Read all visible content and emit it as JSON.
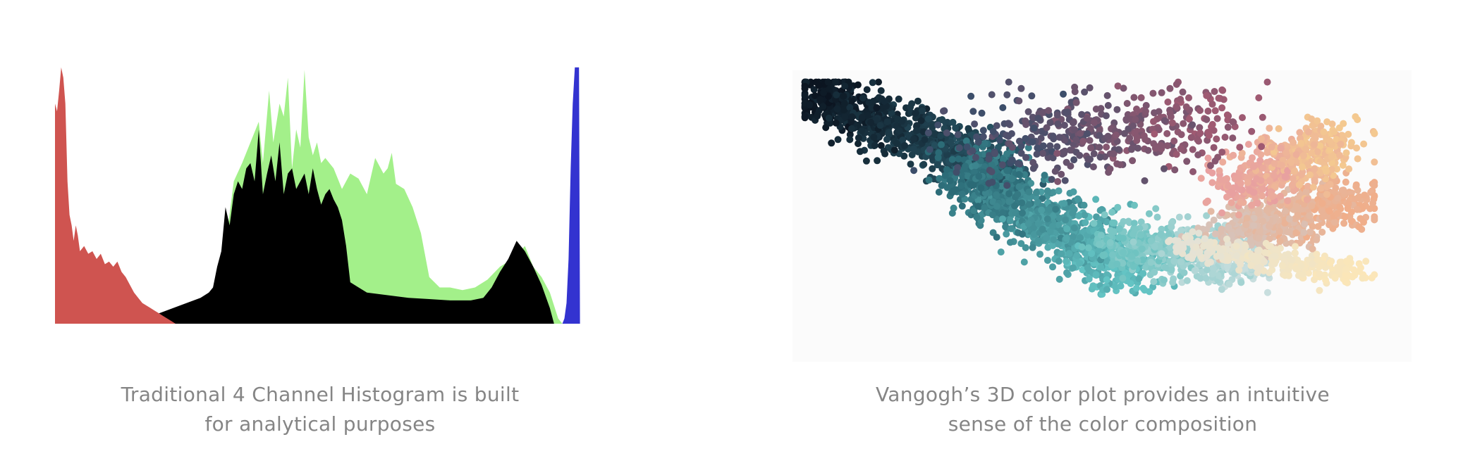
{
  "captions": {
    "histogram": [
      "Traditional 4 Channel Histogram is built",
      "for analytical purposes"
    ],
    "color_plot": [
      "Vangogh’s 3D color plot provides an intuitive",
      "sense of the color composition"
    ]
  },
  "colors": {
    "red": "#cf5450",
    "green": "#a3f08a",
    "blue": "#3333d0",
    "black": "#000000",
    "caption": "#858585"
  },
  "chart_data": [
    {
      "type": "area",
      "x_range": [
        0,
        255
      ],
      "y_range": [
        0,
        1
      ],
      "grid": false,
      "series": [
        {
          "color": "#a3f08a",
          "points": [
            [
              0,
              0
            ],
            [
              20,
              0.01
            ],
            [
              40,
              0.02
            ],
            [
              60,
              0.05
            ],
            [
              70,
              0.08
            ],
            [
              78,
              0.12
            ],
            [
              82,
              0.3
            ],
            [
              86,
              0.55
            ],
            [
              90,
              0.62
            ],
            [
              94,
              0.7
            ],
            [
              98,
              0.78
            ],
            [
              100,
              0.62
            ],
            [
              103,
              0.9
            ],
            [
              105,
              0.7
            ],
            [
              108,
              0.85
            ],
            [
              110,
              0.8
            ],
            [
              112,
              0.95
            ],
            [
              114,
              0.6
            ],
            [
              116,
              0.75
            ],
            [
              118,
              0.68
            ],
            [
              120,
              0.98
            ],
            [
              122,
              0.72
            ],
            [
              124,
              0.65
            ],
            [
              126,
              0.7
            ],
            [
              128,
              0.62
            ],
            [
              130,
              0.64
            ],
            [
              134,
              0.6
            ],
            [
              138,
              0.52
            ],
            [
              142,
              0.58
            ],
            [
              146,
              0.56
            ],
            [
              150,
              0.5
            ],
            [
              154,
              0.64
            ],
            [
              158,
              0.58
            ],
            [
              160,
              0.6
            ],
            [
              162,
              0.66
            ],
            [
              164,
              0.54
            ],
            [
              168,
              0.52
            ],
            [
              172,
              0.45
            ],
            [
              176,
              0.35
            ],
            [
              180,
              0.18
            ],
            [
              185,
              0.14
            ],
            [
              190,
              0.14
            ],
            [
              196,
              0.13
            ],
            [
              202,
              0.14
            ],
            [
              208,
              0.17
            ],
            [
              214,
              0.22
            ],
            [
              220,
              0.25
            ],
            [
              226,
              0.3
            ],
            [
              230,
              0.22
            ],
            [
              234,
              0.18
            ],
            [
              238,
              0.12
            ],
            [
              242,
              0.02
            ],
            [
              244,
              0
            ]
          ]
        },
        {
          "color": "#000000",
          "points": [
            [
              0,
              0
            ],
            [
              20,
              0.01
            ],
            [
              40,
              0.02
            ],
            [
              50,
              0.04
            ],
            [
              60,
              0.07
            ],
            [
              70,
              0.1
            ],
            [
              74,
              0.12
            ],
            [
              76,
              0.14
            ],
            [
              78,
              0.22
            ],
            [
              80,
              0.28
            ],
            [
              82,
              0.45
            ],
            [
              84,
              0.38
            ],
            [
              86,
              0.5
            ],
            [
              88,
              0.55
            ],
            [
              90,
              0.52
            ],
            [
              92,
              0.6
            ],
            [
              94,
              0.62
            ],
            [
              96,
              0.55
            ],
            [
              98,
              0.75
            ],
            [
              100,
              0.5
            ],
            [
              102,
              0.58
            ],
            [
              104,
              0.65
            ],
            [
              106,
              0.55
            ],
            [
              108,
              0.7
            ],
            [
              110,
              0.5
            ],
            [
              112,
              0.58
            ],
            [
              114,
              0.6
            ],
            [
              116,
              0.52
            ],
            [
              118,
              0.55
            ],
            [
              120,
              0.58
            ],
            [
              122,
              0.5
            ],
            [
              124,
              0.6
            ],
            [
              126,
              0.52
            ],
            [
              128,
              0.46
            ],
            [
              130,
              0.5
            ],
            [
              132,
              0.52
            ],
            [
              134,
              0.48
            ],
            [
              136,
              0.45
            ],
            [
              138,
              0.4
            ],
            [
              140,
              0.3
            ],
            [
              142,
              0.16
            ],
            [
              150,
              0.12
            ],
            [
              160,
              0.11
            ],
            [
              170,
              0.1
            ],
            [
              180,
              0.095
            ],
            [
              190,
              0.09
            ],
            [
              200,
              0.09
            ],
            [
              206,
              0.1
            ],
            [
              210,
              0.14
            ],
            [
              214,
              0.2
            ],
            [
              218,
              0.25
            ],
            [
              222,
              0.32
            ],
            [
              226,
              0.28
            ],
            [
              230,
              0.22
            ],
            [
              234,
              0.15
            ],
            [
              238,
              0.06
            ],
            [
              240,
              0
            ]
          ]
        },
        {
          "color": "#cf5450",
          "points": [
            [
              0,
              0
            ],
            [
              0,
              0.85
            ],
            [
              1,
              0.82
            ],
            [
              2,
              0.9
            ],
            [
              3,
              0.99
            ],
            [
              4,
              0.95
            ],
            [
              5,
              0.85
            ],
            [
              6,
              0.55
            ],
            [
              7,
              0.42
            ],
            [
              8,
              0.38
            ],
            [
              9,
              0.32
            ],
            [
              10,
              0.38
            ],
            [
              11,
              0.34
            ],
            [
              12,
              0.28
            ],
            [
              14,
              0.3
            ],
            [
              16,
              0.27
            ],
            [
              18,
              0.28
            ],
            [
              20,
              0.25
            ],
            [
              22,
              0.27
            ],
            [
              24,
              0.23
            ],
            [
              26,
              0.24
            ],
            [
              28,
              0.22
            ],
            [
              30,
              0.24
            ],
            [
              32,
              0.2
            ],
            [
              34,
              0.18
            ],
            [
              36,
              0.15
            ],
            [
              38,
              0.12
            ],
            [
              40,
              0.1
            ],
            [
              42,
              0.08
            ],
            [
              44,
              0.07
            ],
            [
              46,
              0.06
            ],
            [
              48,
              0.05
            ],
            [
              50,
              0.04
            ],
            [
              52,
              0.03
            ],
            [
              54,
              0.02
            ],
            [
              56,
              0.01
            ],
            [
              58,
              0
            ]
          ]
        },
        {
          "color": "#3333d0",
          "points": [
            [
              244,
              0
            ],
            [
              245,
              0.02
            ],
            [
              246,
              0.08
            ],
            [
              247,
              0.25
            ],
            [
              248,
              0.6
            ],
            [
              249,
              0.85
            ],
            [
              250,
              0.99
            ],
            [
              251,
              0.99
            ],
            [
              252,
              0.99
            ],
            [
              252.5,
              0
            ]
          ]
        }
      ]
    },
    {
      "type": "scatter",
      "x_range": [
        0,
        1
      ],
      "y_range": [
        0,
        1
      ],
      "grid": false,
      "generated_clusters": [
        {
          "count": 900,
          "from": [
            0.03,
            0.08
          ],
          "to": [
            0.35,
            0.35
          ],
          "spread": 0.045,
          "color_from": "#0b1420",
          "color_to": "#2a5a6a"
        },
        {
          "count": 1100,
          "from": [
            0.28,
            0.35
          ],
          "to": [
            0.55,
            0.7
          ],
          "spread": 0.05,
          "color_from": "#2b6a76",
          "color_to": "#64c4c4"
        },
        {
          "count": 700,
          "from": [
            0.52,
            0.6
          ],
          "to": [
            0.75,
            0.65
          ],
          "spread": 0.045,
          "color_from": "#6cc2c0",
          "color_to": "#c8dede"
        },
        {
          "count": 600,
          "from": [
            0.7,
            0.55
          ],
          "to": [
            0.9,
            0.45
          ],
          "spread": 0.05,
          "color_from": "#d8c2b8",
          "color_to": "#f0ae8a"
        },
        {
          "count": 500,
          "from": [
            0.72,
            0.4
          ],
          "to": [
            0.88,
            0.25
          ],
          "spread": 0.05,
          "color_from": "#e8a0a0",
          "color_to": "#f4c990"
        },
        {
          "count": 450,
          "from": [
            0.3,
            0.25
          ],
          "to": [
            0.7,
            0.18
          ],
          "spread": 0.07,
          "color_from": "#3c4e6a",
          "color_to": "#a05a72"
        },
        {
          "count": 300,
          "from": [
            0.62,
            0.6
          ],
          "to": [
            0.92,
            0.7
          ],
          "spread": 0.025,
          "color_from": "#e4e2d6",
          "color_to": "#fbe6b8"
        }
      ]
    }
  ]
}
